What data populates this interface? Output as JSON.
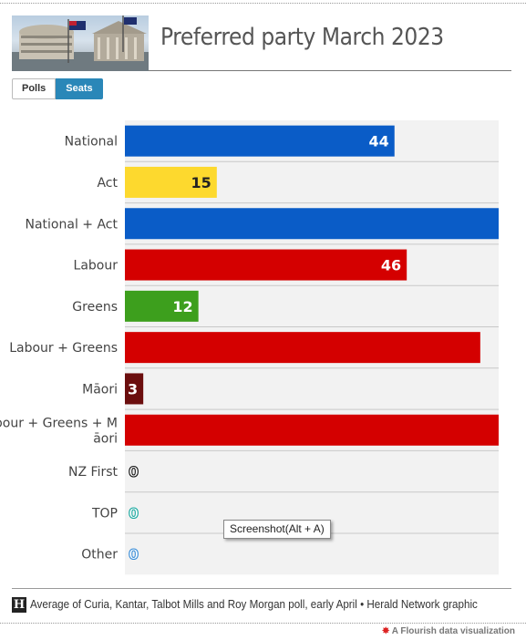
{
  "header": {
    "title": "Preferred party March 2023",
    "photo_icon": "parliament-photo-icon"
  },
  "toggle": {
    "options": [
      "Polls",
      "Seats"
    ],
    "selected": "Seats",
    "active_color": "#2a87b8"
  },
  "chart_data": {
    "type": "bar",
    "orientation": "horizontal",
    "title": "Preferred party March 2023",
    "categories": [
      "National",
      "Act",
      "National + Act",
      "Labour",
      "Greens",
      "Labour + Greens",
      "Māori",
      "Labour + Greens + Māori",
      "NZ First",
      "TOP",
      "Other"
    ],
    "values": [
      44,
      15,
      61,
      46,
      12,
      58,
      3,
      61,
      0,
      0,
      0
    ],
    "show_label": [
      true,
      true,
      false,
      true,
      true,
      false,
      true,
      false,
      true,
      true,
      true
    ],
    "colors": [
      "#0a5cc7",
      "#fdd92e",
      "#0a5cc7",
      "#d40000",
      "#3d9f1d",
      "#d40000",
      "#6b0e0e",
      "#d40000",
      "#111111",
      "#1aa9a0",
      "#3b8ed8"
    ],
    "xlim": [
      0,
      61
    ],
    "grid": false,
    "background": "#f2f2f2"
  },
  "tooltip": {
    "text": "Screenshot(Alt + A)"
  },
  "footer": {
    "logo": "H",
    "source": "Average of Curia, Kantar, Talbot Mills and Roy Morgan poll, early April • Herald Network graphic",
    "credit": "A Flourish data visualization",
    "credit_icon": "flourish-icon"
  }
}
